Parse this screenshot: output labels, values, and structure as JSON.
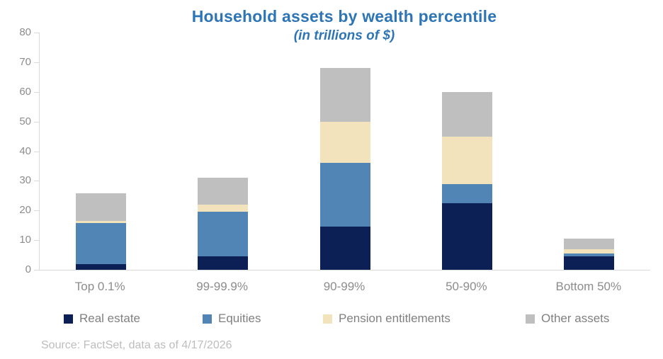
{
  "title": "Household assets by wealth percentile",
  "subtitle": "(in trillions of $)",
  "source": "Source: FactSet, data as of 4/17/2026",
  "colors": {
    "title_blue": "#2e75b6",
    "axis_line": "#d9d9d9",
    "axis_text": "#8c8c8c",
    "legend_text": "#808080",
    "source_text": "#bdbdbd"
  },
  "chart_data": {
    "type": "bar",
    "stacked": true,
    "title": "Household assets by wealth percentile",
    "subtitle": "(in trillions of $)",
    "xlabel": "",
    "ylabel": "",
    "ylim": [
      0,
      80
    ],
    "ytick_step": 10,
    "grid": false,
    "legend_position": "bottom",
    "categories": [
      "Top 0.1%",
      "99-99.9%",
      "90-99%",
      "50-90%",
      "Bottom 50%"
    ],
    "series": [
      {
        "name": "Real estate",
        "color": "#0c2056",
        "values": [
          2.0,
          4.5,
          14.5,
          22.5,
          4.5
        ]
      },
      {
        "name": "Equities",
        "color": "#5085b5",
        "values": [
          13.8,
          15.0,
          21.5,
          6.5,
          1.0
        ]
      },
      {
        "name": "Pension entitlements",
        "color": "#f2e3bc",
        "values": [
          0.8,
          2.5,
          14.0,
          16.0,
          1.5
        ]
      },
      {
        "name": "Other assets",
        "color": "#bfbfbf",
        "values": [
          9.2,
          9.0,
          18.0,
          15.0,
          3.5
        ]
      }
    ],
    "totals": [
      25.8,
      31.0,
      68.0,
      60.0,
      10.5
    ]
  }
}
